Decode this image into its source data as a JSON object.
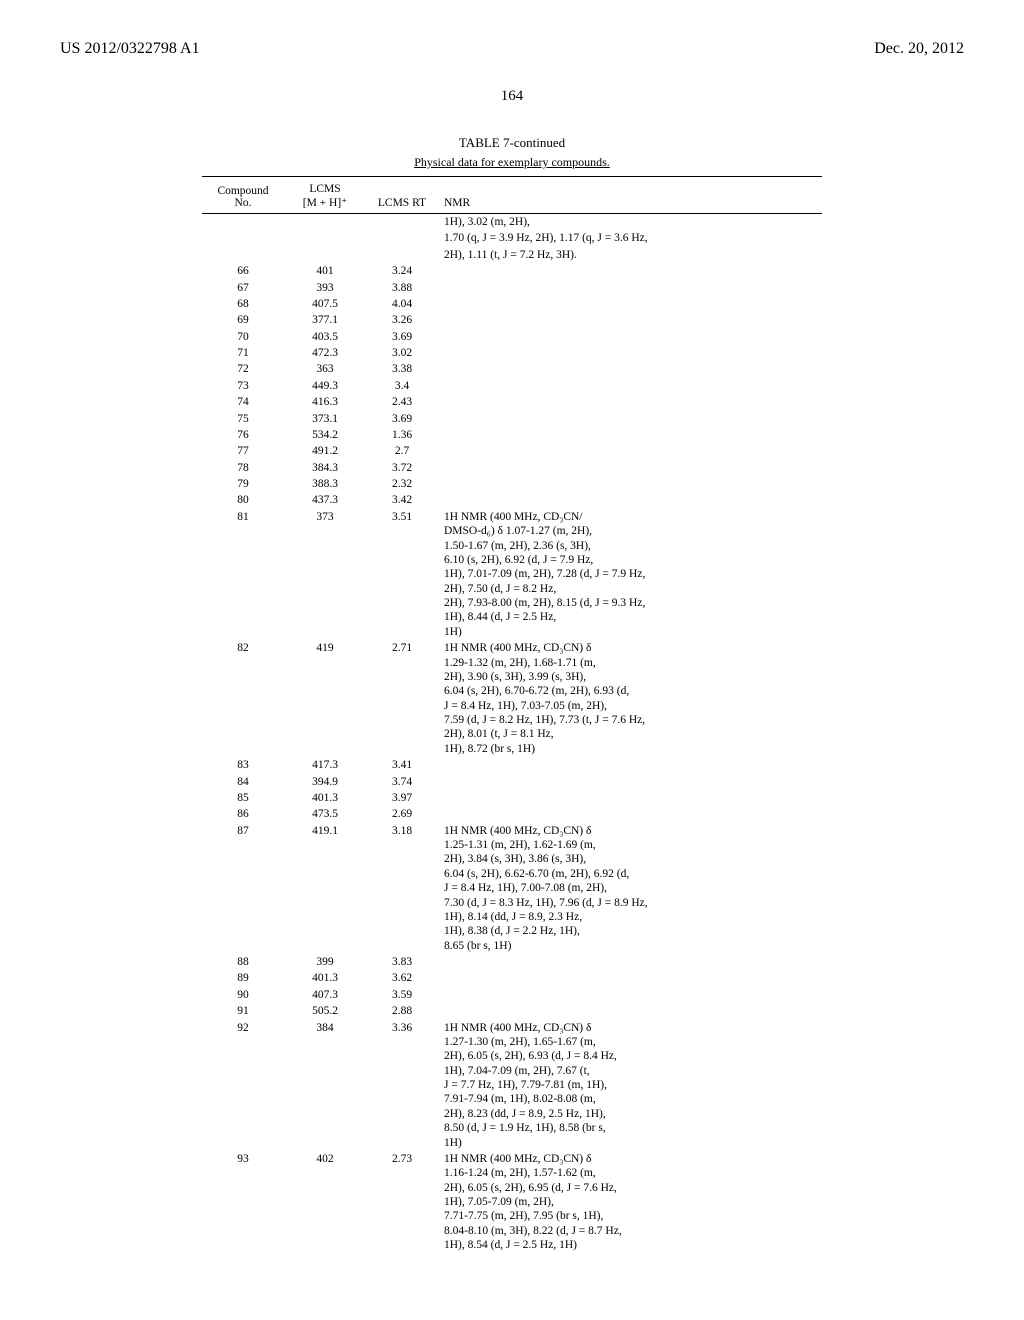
{
  "header": {
    "left": "US 2012/0322798 A1",
    "right": "Dec. 20, 2012"
  },
  "pageNumber": "164",
  "table": {
    "title": "TABLE 7-continued",
    "subtitle": "Physical data for exemplary compounds.",
    "columns": {
      "no": "Compound\nNo.",
      "mh": "LCMS\n[M + H]⁺",
      "rt": "LCMS RT",
      "nmr": "NMR"
    },
    "preRows": [
      "1H), 3.02 (m, 2H),",
      "1.70 (q, J = 3.9 Hz, 2H), 1.17 (q, J = 3.6 Hz,",
      "2H), 1.11 (t, J = 7.2 Hz, 3H)."
    ],
    "rows": [
      {
        "no": "66",
        "mh": "401",
        "rt": "3.24",
        "nmr": ""
      },
      {
        "no": "67",
        "mh": "393",
        "rt": "3.88",
        "nmr": ""
      },
      {
        "no": "68",
        "mh": "407.5",
        "rt": "4.04",
        "nmr": ""
      },
      {
        "no": "69",
        "mh": "377.1",
        "rt": "3.26",
        "nmr": ""
      },
      {
        "no": "70",
        "mh": "403.5",
        "rt": "3.69",
        "nmr": ""
      },
      {
        "no": "71",
        "mh": "472.3",
        "rt": "3.02",
        "nmr": ""
      },
      {
        "no": "72",
        "mh": "363",
        "rt": "3.38",
        "nmr": ""
      },
      {
        "no": "73",
        "mh": "449.3",
        "rt": "3.4",
        "nmr": ""
      },
      {
        "no": "74",
        "mh": "416.3",
        "rt": "2.43",
        "nmr": ""
      },
      {
        "no": "75",
        "mh": "373.1",
        "rt": "3.69",
        "nmr": ""
      },
      {
        "no": "76",
        "mh": "534.2",
        "rt": "1.36",
        "nmr": ""
      },
      {
        "no": "77",
        "mh": "491.2",
        "rt": "2.7",
        "nmr": ""
      },
      {
        "no": "78",
        "mh": "384.3",
        "rt": "3.72",
        "nmr": ""
      },
      {
        "no": "79",
        "mh": "388.3",
        "rt": "2.32",
        "nmr": ""
      },
      {
        "no": "80",
        "mh": "437.3",
        "rt": "3.42",
        "nmr": ""
      },
      {
        "no": "81",
        "mh": "373",
        "rt": "3.51",
        "nmr": "1H NMR (400 MHz, CD₃CN/\nDMSO-d₆) δ 1.07-1.27 (m, 2H),\n1.50-1.67 (m, 2H), 2.36 (s, 3H),\n6.10 (s, 2H), 6.92 (d, J = 7.9 Hz,\n1H), 7.01-7.09 (m, 2H), 7.28 (d, J = 7.9 Hz,\n2H), 7.50 (d, J = 8.2 Hz,\n2H), 7.93-8.00 (m, 2H), 8.15 (d, J = 9.3 Hz,\n1H), 8.44 (d, J = 2.5 Hz,\n1H)"
      },
      {
        "no": "82",
        "mh": "419",
        "rt": "2.71",
        "nmr": "1H NMR (400 MHz, CD₃CN) δ\n1.29-1.32 (m, 2H), 1.68-1.71 (m,\n2H), 3.90 (s, 3H), 3.99 (s, 3H),\n6.04 (s, 2H), 6.70-6.72 (m, 2H), 6.93 (d,\nJ = 8.4 Hz, 1H), 7.03-7.05 (m, 2H),\n7.59 (d, J = 8.2 Hz, 1H), 7.73 (t, J = 7.6 Hz,\n2H), 8.01 (t, J = 8.1 Hz,\n1H), 8.72 (br s, 1H)"
      },
      {
        "no": "83",
        "mh": "417.3",
        "rt": "3.41",
        "nmr": ""
      },
      {
        "no": "84",
        "mh": "394.9",
        "rt": "3.74",
        "nmr": ""
      },
      {
        "no": "85",
        "mh": "401.3",
        "rt": "3.97",
        "nmr": ""
      },
      {
        "no": "86",
        "mh": "473.5",
        "rt": "2.69",
        "nmr": ""
      },
      {
        "no": "87",
        "mh": "419.1",
        "rt": "3.18",
        "nmr": "1H NMR (400 MHz, CD₃CN) δ\n1.25-1.31 (m, 2H), 1.62-1.69 (m,\n2H), 3.84 (s, 3H), 3.86 (s, 3H),\n6.04 (s, 2H), 6.62-6.70 (m, 2H), 6.92 (d,\nJ = 8.4 Hz, 1H), 7.00-7.08 (m, 2H),\n7.30 (d, J = 8.3 Hz, 1H), 7.96 (d, J = 8.9 Hz,\n1H), 8.14 (dd, J = 8.9, 2.3 Hz,\n1H), 8.38 (d, J = 2.2 Hz, 1H),\n8.65 (br s, 1H)"
      },
      {
        "no": "88",
        "mh": "399",
        "rt": "3.83",
        "nmr": ""
      },
      {
        "no": "89",
        "mh": "401.3",
        "rt": "3.62",
        "nmr": ""
      },
      {
        "no": "90",
        "mh": "407.3",
        "rt": "3.59",
        "nmr": ""
      },
      {
        "no": "91",
        "mh": "505.2",
        "rt": "2.88",
        "nmr": ""
      },
      {
        "no": "92",
        "mh": "384",
        "rt": "3.36",
        "nmr": "1H NMR (400 MHz, CD₃CN) δ\n1.27-1.30 (m, 2H), 1.65-1.67 (m,\n2H), 6.05 (s, 2H), 6.93 (d, J = 8.4 Hz,\n1H), 7.04-7.09 (m, 2H), 7.67 (t,\nJ = 7.7 Hz, 1H), 7.79-7.81 (m, 1H),\n7.91-7.94 (m, 1H), 8.02-8.08 (m,\n2H), 8.23 (dd, J = 8.9, 2.5 Hz, 1H),\n8.50 (d, J = 1.9 Hz, 1H), 8.58 (br s,\n1H)"
      },
      {
        "no": "93",
        "mh": "402",
        "rt": "2.73",
        "nmr": "1H NMR (400 MHz, CD₃CN) δ\n1.16-1.24 (m, 2H), 1.57-1.62 (m,\n2H), 6.05 (s, 2H), 6.95 (d, J = 7.6 Hz,\n1H), 7.05-7.09 (m, 2H),\n7.71-7.75 (m, 2H), 7.95 (br s, 1H),\n8.04-8.10 (m, 3H), 8.22 (d, J = 8.7 Hz,\n1H), 8.54 (d, J = 2.5 Hz, 1H)"
      }
    ]
  }
}
